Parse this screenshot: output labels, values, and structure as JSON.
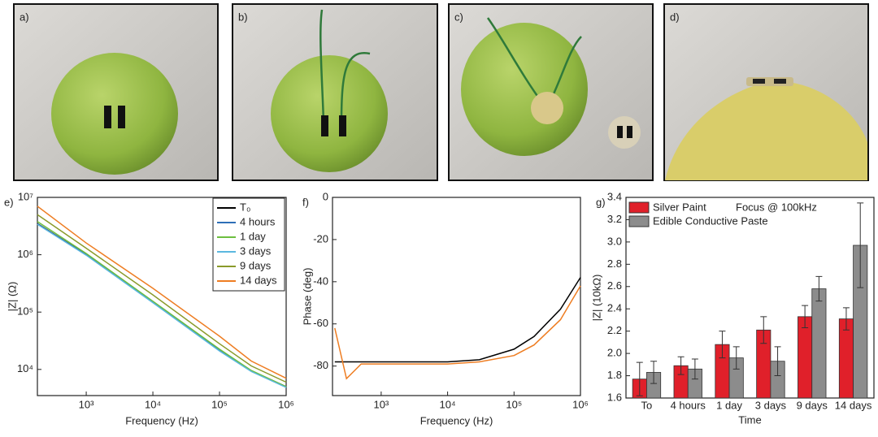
{
  "photos": [
    {
      "label": "a)"
    },
    {
      "label": "b)"
    },
    {
      "label": "c)"
    },
    {
      "label": "d)"
    }
  ],
  "chart_data": [
    {
      "type": "line",
      "label": "e)",
      "xlabel": "Frequency (Hz)",
      "ylabel": "|Z| (Ω)",
      "xscale": "log",
      "yscale": "log",
      "xlim": [
        185,
        1000000
      ],
      "ylim": [
        3500,
        10000000
      ],
      "xticks": [
        {
          "value": 1000,
          "label": "10³"
        },
        {
          "value": 10000,
          "label": "10⁴"
        },
        {
          "value": 100000,
          "label": "10⁵"
        },
        {
          "value": 1000000,
          "label": "10⁶"
        }
      ],
      "yticks": [
        {
          "value": 10000,
          "label": "10⁴"
        },
        {
          "value": 100000,
          "label": "10⁵"
        },
        {
          "value": 1000000,
          "label": "10⁶"
        },
        {
          "value": 10000000,
          "label": "10⁷"
        }
      ],
      "legend": "top-right",
      "x": [
        185,
        1000,
        10000,
        100000,
        300000,
        1000000
      ],
      "series": [
        {
          "name": "T₀",
          "color": "#000000",
          "values": [
            3500000,
            1000000,
            150000,
            22000,
            9500,
            5000
          ]
        },
        {
          "name": "4 hours",
          "color": "#2e6fb7",
          "values": [
            3450000,
            990000,
            148000,
            21500,
            9300,
            4900
          ]
        },
        {
          "name": "1 day",
          "color": "#6cbf3f",
          "values": [
            3800000,
            1050000,
            155000,
            22500,
            9600,
            5000
          ]
        },
        {
          "name": "3 days",
          "color": "#5bb8e0",
          "values": [
            3400000,
            980000,
            146000,
            21000,
            9200,
            4850
          ]
        },
        {
          "name": "9 days",
          "color": "#8a9a2a",
          "values": [
            5000000,
            1300000,
            200000,
            28000,
            11500,
            6000
          ]
        },
        {
          "name": "14 days",
          "color": "#ee7d22",
          "values": [
            7000000,
            1600000,
            260000,
            38000,
            14000,
            7000
          ]
        }
      ]
    },
    {
      "type": "line",
      "label": "f)",
      "xlabel": "Frequency (Hz)",
      "ylabel": "Phase (deg)",
      "xscale": "log",
      "xlim": [
        185,
        1000000
      ],
      "ylim": [
        -94,
        0
      ],
      "xticks": [
        {
          "value": 1000,
          "label": "10³"
        },
        {
          "value": 10000,
          "label": "10⁴"
        },
        {
          "value": 100000,
          "label": "10⁵"
        },
        {
          "value": 1000000,
          "label": "10⁶"
        }
      ],
      "yticks": [
        0,
        -20,
        -40,
        -60,
        -80
      ],
      "x": [
        200,
        300,
        500,
        1000,
        3000,
        10000,
        30000,
        100000,
        200000,
        500000,
        1000000
      ],
      "series": [
        {
          "color": "#000000",
          "values": [
            -78,
            -78,
            -78,
            -78,
            -78,
            -78,
            -77,
            -72,
            -66,
            -53,
            -38
          ]
        },
        {
          "color": "#ee7d22",
          "values": [
            -62,
            -86,
            -79,
            -79,
            -79,
            -79,
            -78,
            -75,
            -70,
            -58,
            -42
          ]
        }
      ]
    },
    {
      "type": "bar",
      "label": "g)",
      "xlabel": "Time",
      "ylabel": "|Z| (10kΩ)",
      "annotation": "Focus @ 100kHz",
      "ylim": [
        1.6,
        3.4
      ],
      "yticks": [
        1.6,
        1.8,
        {
          "value": 2.0,
          "label": "2.0"
        },
        2.2,
        2.4,
        2.6,
        2.8,
        {
          "value": 3.0,
          "label": "3.0"
        },
        3.2,
        3.4
      ],
      "legend": "top-left",
      "categories": [
        "To",
        "4 hours",
        "1 day",
        "3 days",
        "9 days",
        "14 days"
      ],
      "series": [
        {
          "name": "Silver Paint",
          "color": "#e0202a",
          "values": [
            1.77,
            1.89,
            2.08,
            2.21,
            2.33,
            2.31
          ],
          "errors": [
            0.15,
            0.08,
            0.12,
            0.12,
            0.1,
            0.1
          ]
        },
        {
          "name": "Edible Conductive Paste",
          "color": "#8c8c8c",
          "values": [
            1.83,
            1.86,
            1.96,
            1.93,
            2.58,
            2.97
          ],
          "errors": [
            0.1,
            0.09,
            0.1,
            0.13,
            0.11,
            0.38
          ]
        }
      ]
    }
  ]
}
